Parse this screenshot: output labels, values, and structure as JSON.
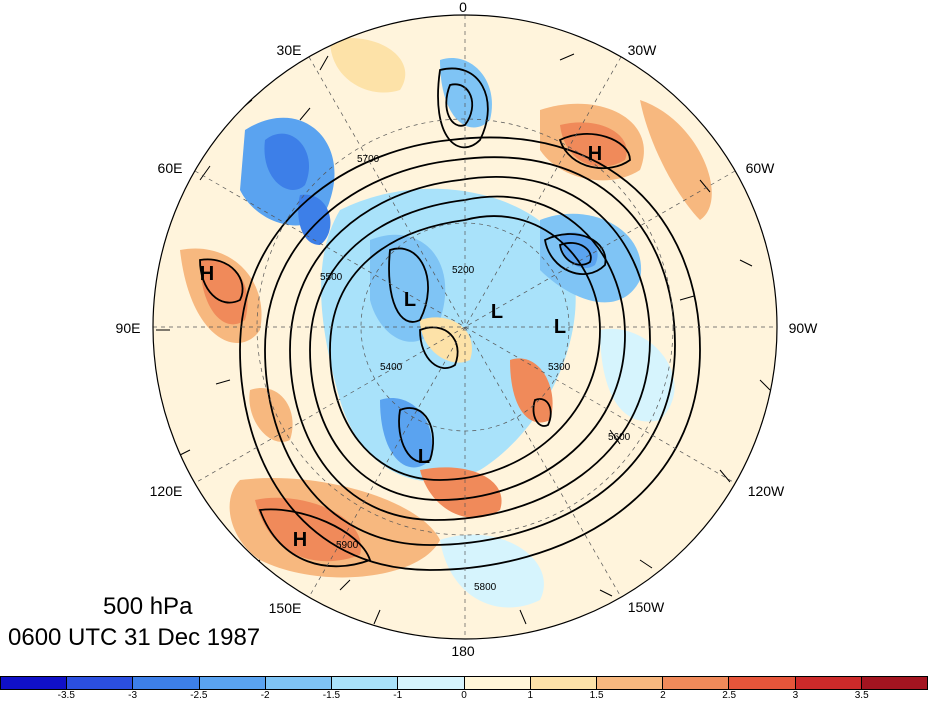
{
  "level_title": "500 hPa",
  "time_title": "0600 UTC 31 Dec 1987",
  "longitude_labels": [
    "0",
    "30W",
    "60W",
    "90W",
    "120W",
    "150W",
    "180",
    "150E",
    "120E",
    "90E",
    "60E",
    "30E"
  ],
  "contour_labels": [
    "5200",
    "5300",
    "5400",
    "5500",
    "5600",
    "5700",
    "5800",
    "5900"
  ],
  "pressure_centers": [
    "H",
    "H",
    "H",
    "L",
    "L",
    "L",
    "L"
  ],
  "colorbar": {
    "ticks": [
      "-3.5",
      "-3",
      "-2.5",
      "-2",
      "-1.5",
      "-1",
      "0",
      "1",
      "1.5",
      "2",
      "2.5",
      "3",
      "3.5"
    ],
    "colors": [
      "#1010c8",
      "#2b4fe0",
      "#3d7fe8",
      "#5aa3f0",
      "#7fc4f5",
      "#a9e2fa",
      "#d6f4fd",
      "#fff6d8",
      "#fde2a8",
      "#f7b87f",
      "#f08a5a",
      "#e6553a",
      "#cc2a2a",
      "#a31420"
    ]
  }
}
